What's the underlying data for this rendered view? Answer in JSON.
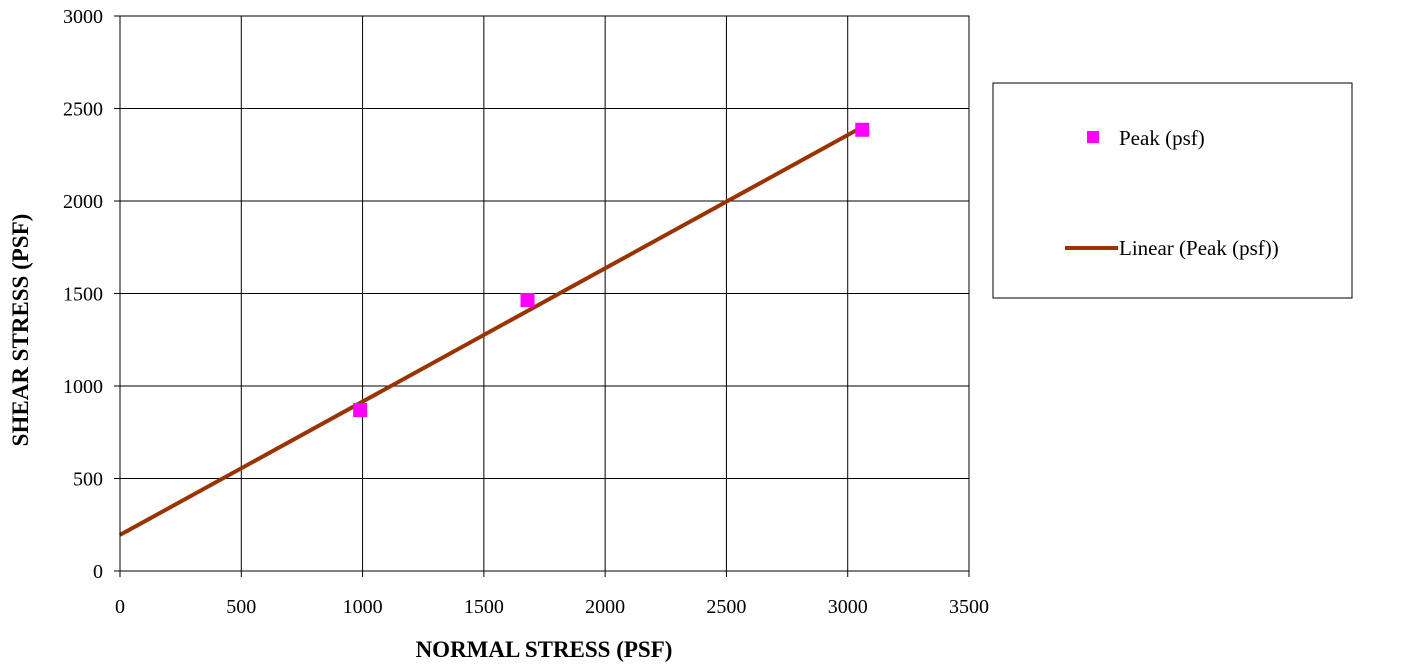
{
  "chart_data": {
    "type": "scatter",
    "xlabel": "NORMAL STRESS (PSF)",
    "ylabel": "SHEAR STRESS (PSF)",
    "xlim": [
      0,
      3500
    ],
    "ylim": [
      0,
      3000
    ],
    "x_ticks": [
      0,
      500,
      1000,
      1500,
      2000,
      2500,
      3000,
      3500
    ],
    "y_ticks": [
      0,
      500,
      1000,
      1500,
      2000,
      2500,
      3000
    ],
    "grid": true,
    "legend_position": "right",
    "series": [
      {
        "name": "Peak (psf)",
        "kind": "points",
        "marker": "square",
        "color": "#ff00ff",
        "x": [
          990,
          1680,
          3060
        ],
        "y": [
          870,
          1465,
          2385
        ]
      },
      {
        "name": "Linear (Peak (psf))",
        "kind": "trendline",
        "color": "#993300",
        "x": [
          0,
          3060
        ],
        "y": [
          195,
          2400
        ]
      }
    ]
  }
}
